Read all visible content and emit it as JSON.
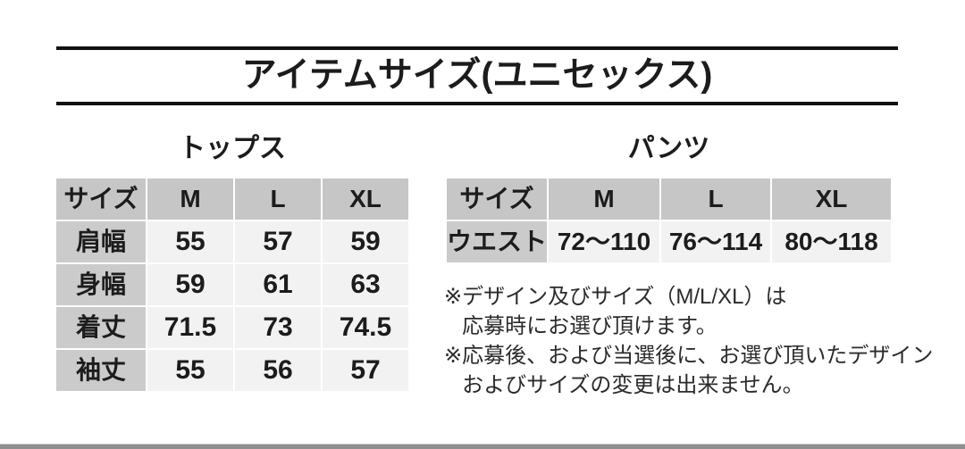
{
  "title": "アイテムサイズ(ユニセックス)",
  "sections": {
    "tops": {
      "heading": "トップス",
      "table": {
        "header": [
          "サイズ",
          "M",
          "L",
          "XL"
        ],
        "rows": [
          {
            "label": "肩幅",
            "values": [
              "55",
              "57",
              "59"
            ]
          },
          {
            "label": "身幅",
            "values": [
              "59",
              "61",
              "63"
            ]
          },
          {
            "label": "着丈",
            "values": [
              "71.5",
              "73",
              "74.5"
            ]
          },
          {
            "label": "袖丈",
            "values": [
              "55",
              "56",
              "57"
            ]
          }
        ]
      }
    },
    "pants": {
      "heading": "パンツ",
      "table": {
        "header": [
          "サイズ",
          "M",
          "L",
          "XL"
        ],
        "rows": [
          {
            "label": "ウエスト",
            "values": [
              "72〜110",
              "76〜114",
              "80〜118"
            ]
          }
        ]
      }
    }
  },
  "notes": [
    {
      "marker": "※",
      "lines": [
        "デザイン及びサイズ（M/L/XL）は",
        "応募時にお選び頂けます。"
      ]
    },
    {
      "marker": "※",
      "lines": [
        "応募後、および当選後に、お選び頂いたデザイン",
        "およびサイズの変更は出来ません。"
      ]
    }
  ],
  "colors": {
    "background": "#ffffff",
    "rule": "#111111",
    "table_header_bg": "#c6c6c6",
    "table_label_bg": "#cbcbcb",
    "table_cell_bg": "#f2f2f2",
    "text": "#1c1c1c",
    "note_text": "#2b2b2b",
    "bottom_bar": "#8f8f8f"
  }
}
